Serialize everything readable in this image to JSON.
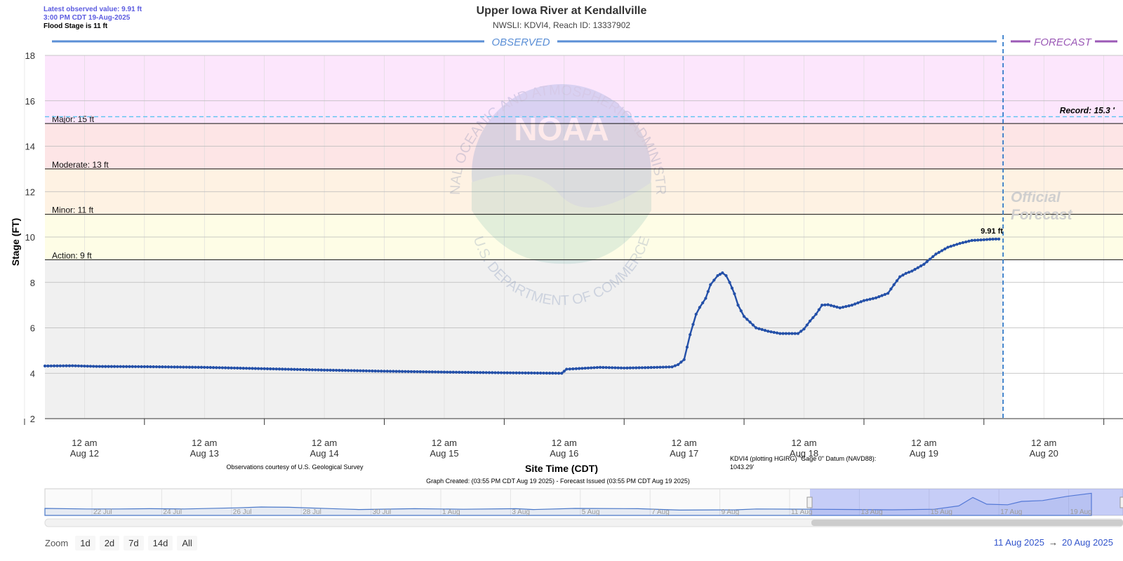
{
  "header": {
    "latest_line": "Latest observed value: 9.91 ft",
    "latest_time": "3:00 PM CDT 19-Aug-2025",
    "flood_stage": "Flood Stage is 11 ft",
    "title": "Upper Iowa River at Kendallville",
    "subtitle": "NWSLI: KDVI4, Reach ID: 13337902"
  },
  "labels": {
    "observed": "OBSERVED",
    "forecast": "FORECAST",
    "record": "Record: 15.3 '",
    "official": "Official",
    "forecast_wm": "Forecast",
    "latest_point": "9.91 ft",
    "usgs": "Observations courtesy of U.S. Geological Survey",
    "datum1": "KDVI4 (plotting HGIRG) \"Gage 0\" Datum (NAVD88):",
    "datum2": "1043.29'",
    "created": "Graph Created: (03:55 PM CDT Aug 19 2025) - Forecast Issued (03:55 PM CDT Aug 19 2025)",
    "noaa_ring_top": "NATIONAL OCEANIC AND ATMOSPHERIC ADMINISTRATION",
    "noaa_ring_bottom": "U.S. DEPARTMENT OF COMMERCE",
    "noaa_logo": "NOAA"
  },
  "colors": {
    "major": "#fce6fc",
    "moderate": "#fde5e6",
    "minor": "#fef2e3",
    "action": "#fefde6",
    "normal": "#f0f0f0",
    "series": "#2450a8",
    "observed_bar": "#5b8fd6",
    "forecast_bar": "#9b59b6"
  },
  "chart_data": {
    "type": "line",
    "ylabel": "Stage (FT)",
    "xlabel": "Site Time (CDT)",
    "ylim": [
      2,
      18
    ],
    "yticks": [
      2,
      4,
      6,
      8,
      10,
      12,
      14,
      16,
      18
    ],
    "xlim_days": [
      11.67,
      20.66
    ],
    "x_ticks": [
      {
        "day": 12,
        "l1": "12 am",
        "l2": "Aug 12"
      },
      {
        "day": 13,
        "l1": "12 am",
        "l2": "Aug 13"
      },
      {
        "day": 14,
        "l1": "12 am",
        "l2": "Aug 14"
      },
      {
        "day": 15,
        "l1": "12 am",
        "l2": "Aug 15"
      },
      {
        "day": 16,
        "l1": "12 am",
        "l2": "Aug 16"
      },
      {
        "day": 17,
        "l1": "12 am",
        "l2": "Aug 17"
      },
      {
        "day": 18,
        "l1": "12 am",
        "l2": "Aug 18"
      },
      {
        "day": 19,
        "l1": "12 am",
        "l2": "Aug 19"
      },
      {
        "day": 20,
        "l1": "12 am",
        "l2": "Aug 20"
      }
    ],
    "flood_categories": [
      {
        "name": "Action",
        "label": "Action: 9 ft",
        "stage": 9
      },
      {
        "name": "Minor",
        "label": "Minor: 11 ft",
        "stage": 11
      },
      {
        "name": "Moderate",
        "label": "Moderate: 13 ft",
        "stage": 13
      },
      {
        "name": "Major",
        "label": "Major: 15 ft",
        "stage": 15
      }
    ],
    "record_stage": 15.3,
    "forecast_start_day": 19.66,
    "latest": {
      "day": 19.625,
      "value": 9.91
    },
    "observed": {
      "x_day": [
        11.67,
        11.9,
        12.1,
        12.5,
        13.0,
        13.5,
        14.0,
        14.5,
        15.0,
        15.5,
        15.98,
        16.02,
        16.1,
        16.3,
        16.5,
        16.7,
        16.9,
        16.95,
        17.0,
        17.05,
        17.1,
        17.13,
        17.18,
        17.22,
        17.28,
        17.32,
        17.35,
        17.38,
        17.42,
        17.45,
        17.5,
        17.6,
        17.7,
        17.8,
        17.95,
        18.0,
        18.05,
        18.1,
        18.15,
        18.2,
        18.3,
        18.4,
        18.5,
        18.6,
        18.7,
        18.75,
        18.8,
        18.85,
        18.9,
        19.0,
        19.1,
        19.2,
        19.3,
        19.4,
        19.5,
        19.55,
        19.6,
        19.625
      ],
      "y_ft": [
        4.32,
        4.33,
        4.3,
        4.29,
        4.26,
        4.2,
        4.14,
        4.09,
        4.05,
        4.02,
        4.0,
        4.18,
        4.2,
        4.26,
        4.23,
        4.25,
        4.28,
        4.38,
        4.6,
        5.7,
        6.6,
        6.9,
        7.3,
        7.9,
        8.3,
        8.42,
        8.3,
        8.0,
        7.5,
        7.0,
        6.5,
        6.0,
        5.85,
        5.75,
        5.75,
        5.95,
        6.3,
        6.6,
        7.0,
        7.02,
        6.88,
        7.0,
        7.2,
        7.32,
        7.52,
        7.9,
        8.25,
        8.4,
        8.5,
        8.8,
        9.25,
        9.55,
        9.72,
        9.85,
        9.88,
        9.9,
        9.91,
        9.91
      ]
    },
    "navigator": {
      "labels": [
        "22 Jul",
        "24 Jul",
        "26 Jul",
        "28 Jul",
        "30 Jul",
        "1 Aug",
        "3 Aug",
        "5 Aug",
        "7 Aug",
        "9 Aug",
        "11 Aug",
        "13 Aug",
        "15 Aug",
        "17 Aug",
        "19 Aug"
      ],
      "x_rel": [
        0,
        1.2,
        2.1,
        3.0,
        4.0,
        5.5,
        6.2,
        7.0,
        8.5,
        9.0,
        10.6,
        12.0,
        13.5,
        14.0,
        15.2,
        17.0,
        18.2,
        19.8,
        20.4,
        22.0,
        23.3,
        24.3,
        25.5,
        26.2,
        26.6,
        27.0,
        27.6,
        28.0,
        28.6,
        29.3,
        30.0
      ],
      "y_ft": [
        4.5,
        4.3,
        4.3,
        4.4,
        4.3,
        4.7,
        5.0,
        4.9,
        4.3,
        4.1,
        4.4,
        4.2,
        4.4,
        4.1,
        4.5,
        4.4,
        3.9,
        4.0,
        4.3,
        4.2,
        4.1,
        4.0,
        4.2,
        5.4,
        8.4,
        6.0,
        5.8,
        7.0,
        7.3,
        8.8,
        9.91
      ]
    }
  },
  "zoom": {
    "label": "Zoom",
    "buttons": [
      "1d",
      "2d",
      "7d",
      "14d",
      "All"
    ]
  },
  "range": {
    "from": "11 Aug 2025",
    "arrow": "→",
    "to": "20 Aug 2025"
  }
}
